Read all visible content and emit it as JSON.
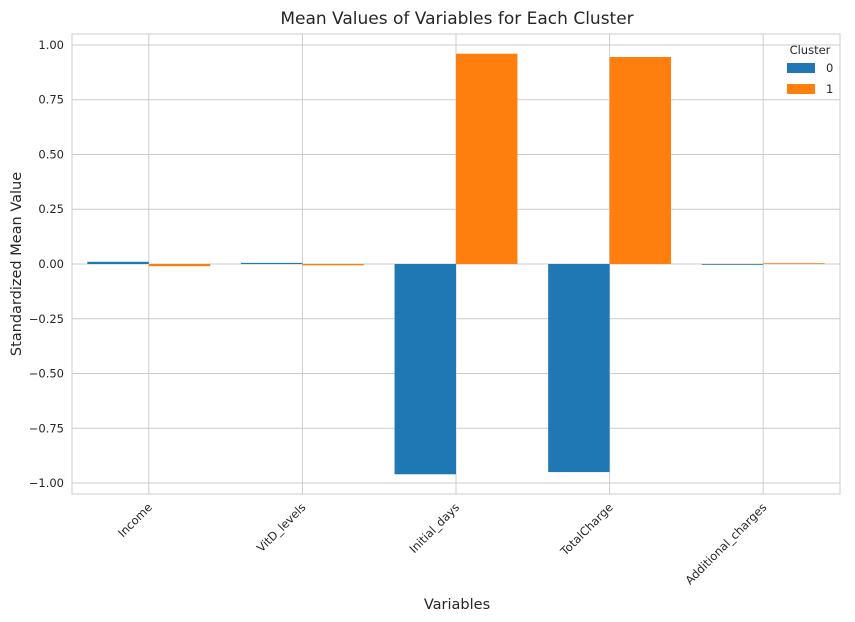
{
  "chart_data": {
    "type": "bar",
    "title": "Mean Values of Variables for Each Cluster",
    "xlabel": "Variables",
    "ylabel": "Standardized Mean Value",
    "categories": [
      "Income",
      "VitD_levels",
      "Initial_days",
      "TotalCharge",
      "Additional_charges"
    ],
    "series": [
      {
        "name": "0",
        "values": [
          0.01,
          0.005,
          -0.96,
          -0.95,
          -0.003
        ],
        "color": "#1f77b4"
      },
      {
        "name": "1",
        "values": [
          -0.01,
          -0.006,
          0.96,
          0.945,
          0.003
        ],
        "color": "#ff7f0e"
      }
    ],
    "ylim": [
      -1.05,
      1.05
    ],
    "yticks": [
      "1.00",
      "0.75",
      "0.50",
      "0.25",
      "0.00",
      "−0.25",
      "−0.50",
      "−0.75",
      "−1.00"
    ],
    "ytick_values": [
      1.0,
      0.75,
      0.5,
      0.25,
      0.0,
      -0.25,
      -0.5,
      -0.75,
      -1.0
    ],
    "grid": true,
    "legend": {
      "title": "Cluster",
      "placement": "top-right"
    },
    "grid_color": "#cccccc",
    "axes_edge_color": "#cccccc"
  }
}
